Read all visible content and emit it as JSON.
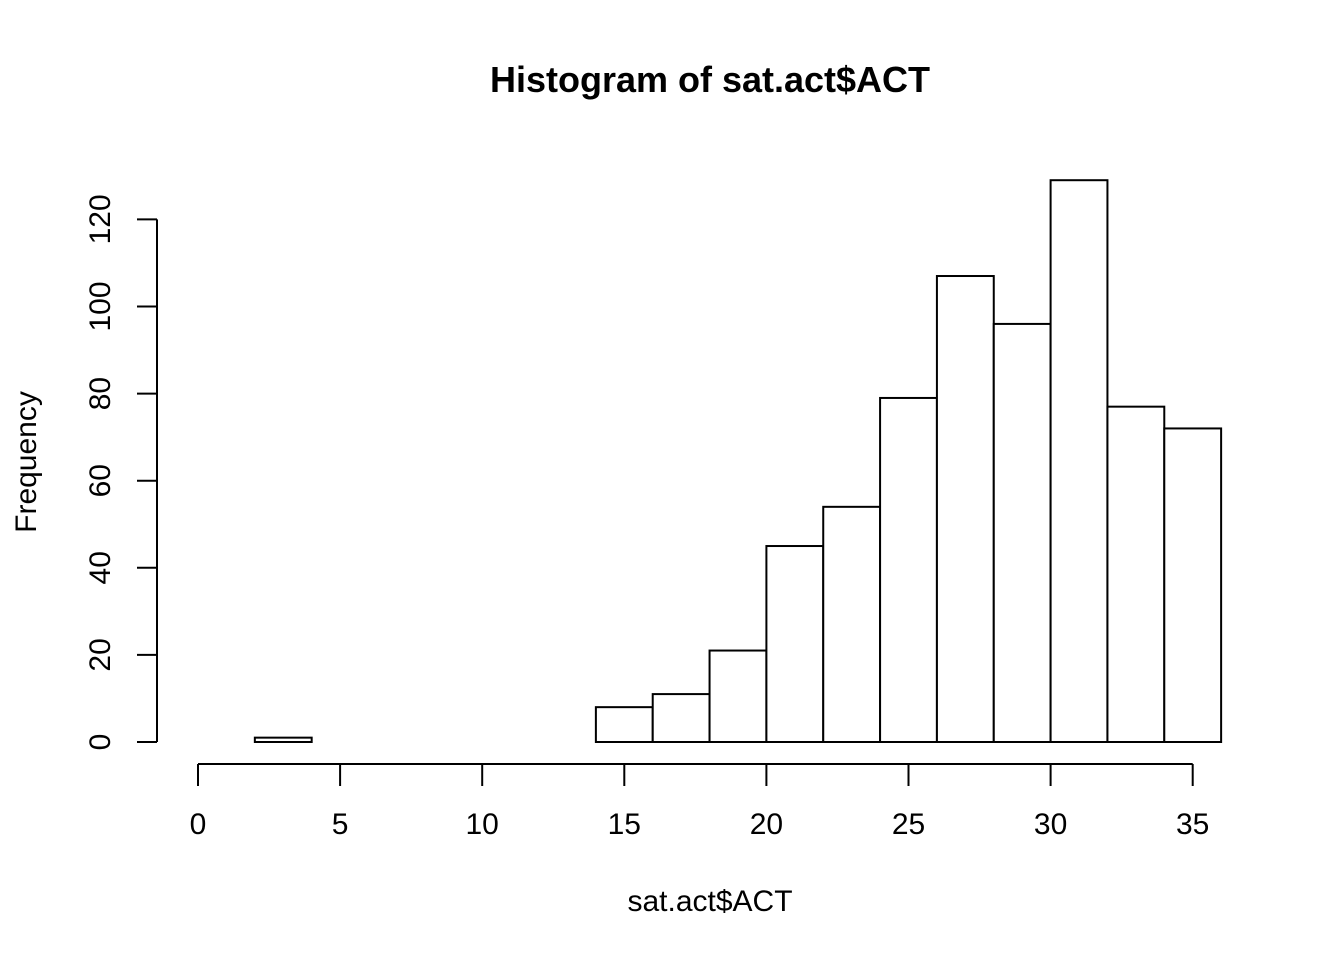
{
  "chart_data": {
    "type": "bar",
    "title": "Histogram of sat.act$ACT",
    "xlabel": "sat.act$ACT",
    "ylabel": "Frequency",
    "bins": [
      {
        "start": 0,
        "end": 2,
        "count": 0
      },
      {
        "start": 2,
        "end": 4,
        "count": 1
      },
      {
        "start": 4,
        "end": 6,
        "count": 0
      },
      {
        "start": 6,
        "end": 8,
        "count": 0
      },
      {
        "start": 8,
        "end": 10,
        "count": 0
      },
      {
        "start": 10,
        "end": 12,
        "count": 0
      },
      {
        "start": 12,
        "end": 14,
        "count": 0
      },
      {
        "start": 14,
        "end": 16,
        "count": 8
      },
      {
        "start": 16,
        "end": 18,
        "count": 11
      },
      {
        "start": 18,
        "end": 20,
        "count": 21
      },
      {
        "start": 20,
        "end": 22,
        "count": 45
      },
      {
        "start": 22,
        "end": 24,
        "count": 54
      },
      {
        "start": 24,
        "end": 26,
        "count": 79
      },
      {
        "start": 26,
        "end": 28,
        "count": 107
      },
      {
        "start": 28,
        "end": 30,
        "count": 96
      },
      {
        "start": 30,
        "end": 32,
        "count": 129
      },
      {
        "start": 32,
        "end": 34,
        "count": 77
      },
      {
        "start": 34,
        "end": 36,
        "count": 72
      }
    ],
    "xlim": [
      0,
      36
    ],
    "ylim": [
      0,
      130
    ],
    "xticks": [
      0,
      5,
      10,
      15,
      20,
      25,
      30,
      35
    ],
    "yticks": [
      0,
      20,
      40,
      60,
      80,
      100,
      120
    ],
    "grid": false,
    "colors": {
      "bar_fill": "#ffffff",
      "bar_stroke": "#000000"
    }
  }
}
